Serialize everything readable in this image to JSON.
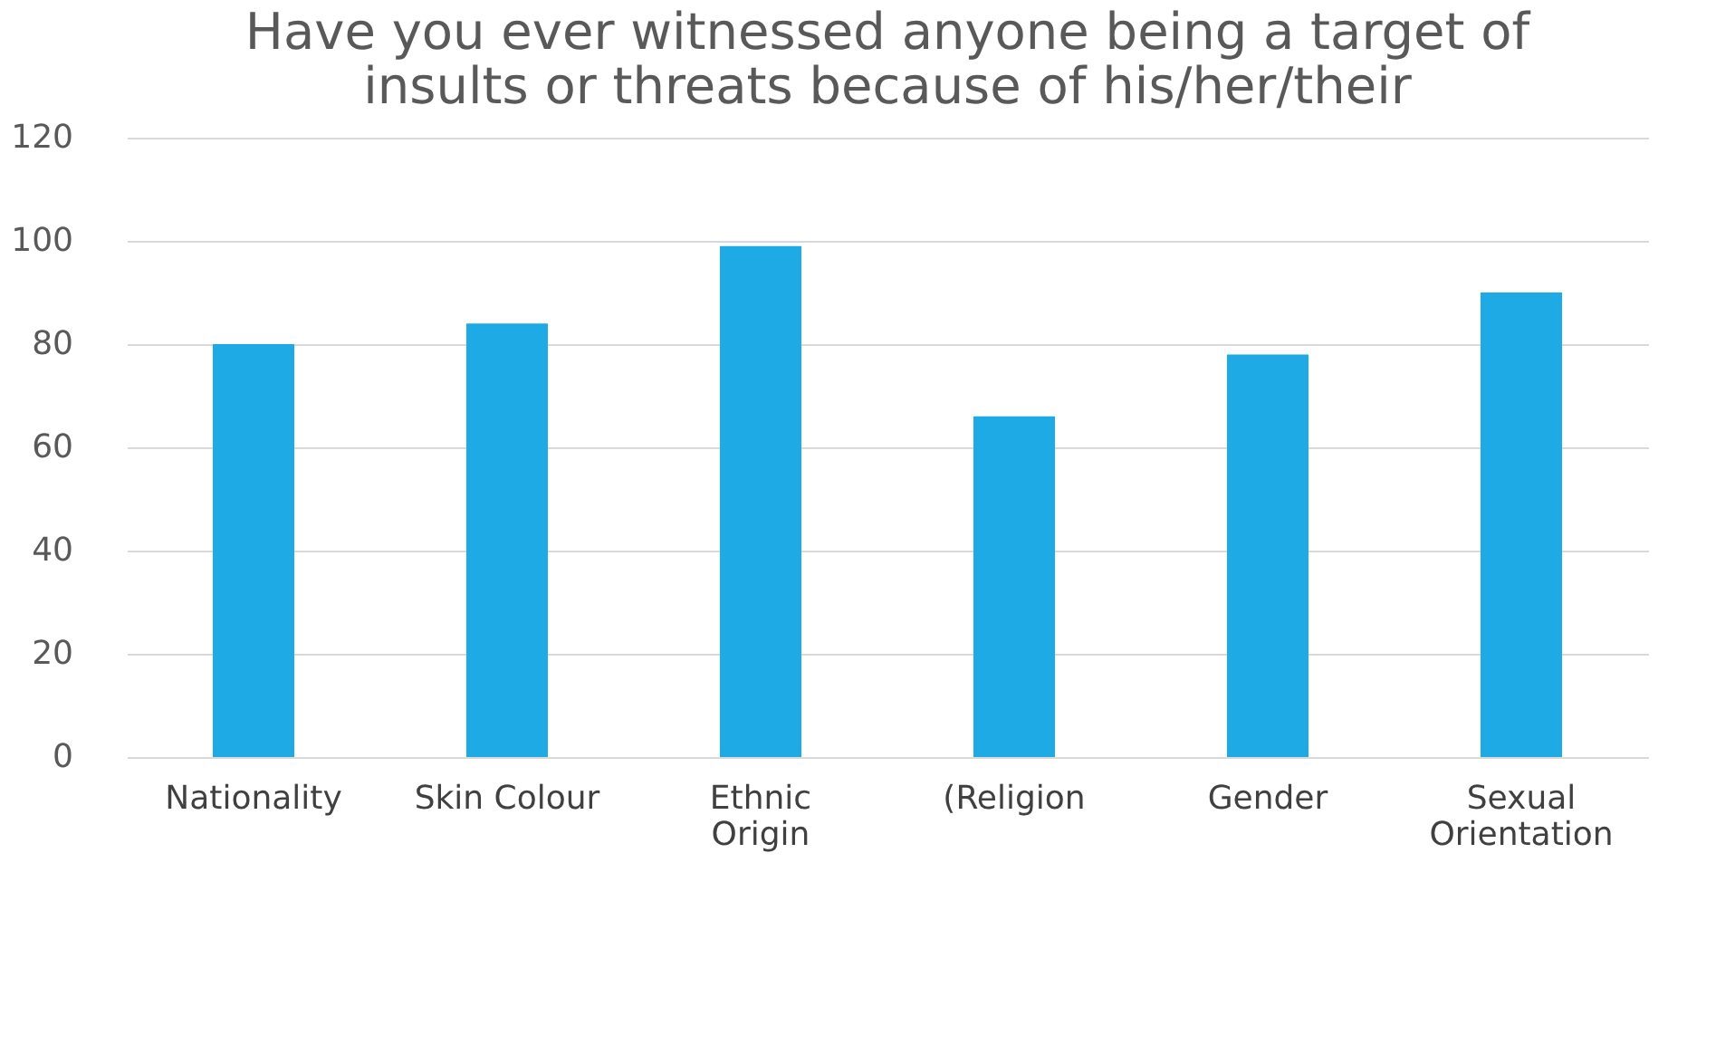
{
  "chart_data": {
    "type": "bar",
    "title": "Have you ever witnessed anyone being a target of insults or threats because of his/her/their",
    "categories": [
      "Nationality",
      "Skin Colour",
      "Ethnic Origin",
      "(Religion",
      "Gender",
      "Sexual Orientation"
    ],
    "values": [
      80,
      84,
      99,
      66,
      78,
      90
    ],
    "color": "#1eaae5",
    "ylim": [
      0,
      120
    ],
    "yticks": [
      0,
      20,
      40,
      60,
      80,
      100,
      120
    ],
    "grid": "y"
  }
}
